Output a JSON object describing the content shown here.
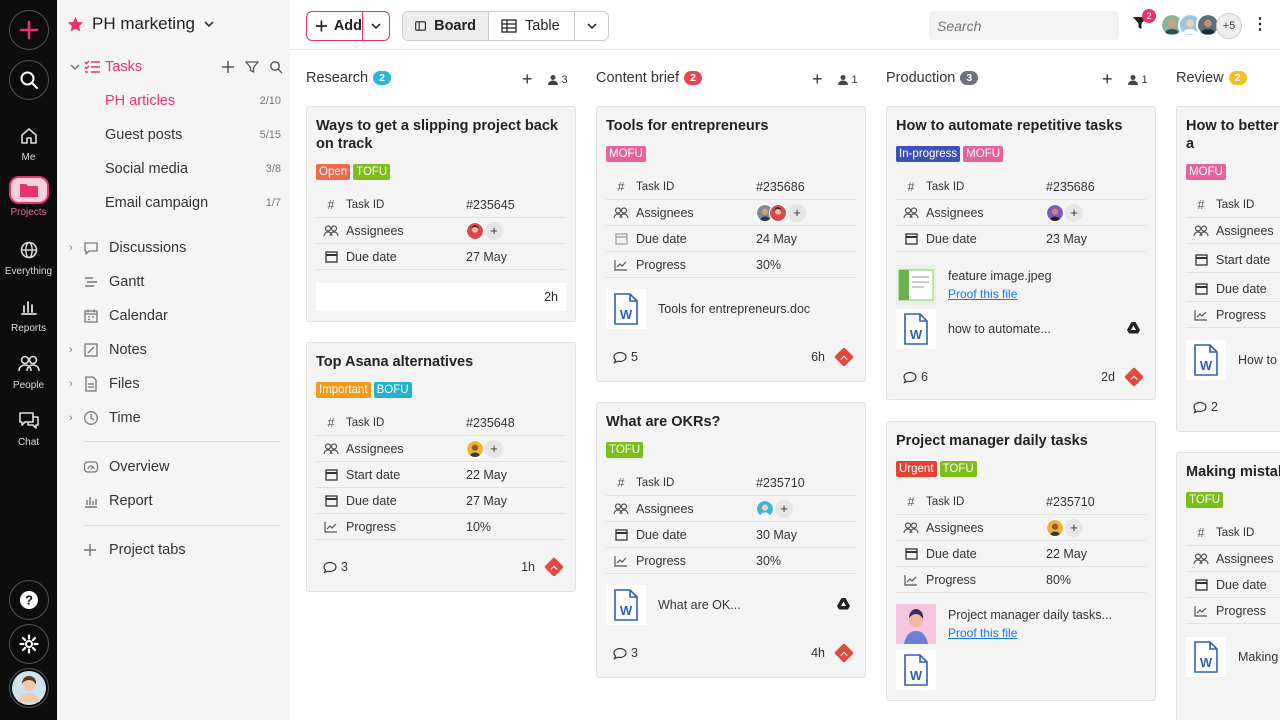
{
  "project": {
    "name": "PH marketing"
  },
  "rail": {
    "items": [
      {
        "label": "Me"
      },
      {
        "label": "Projects"
      },
      {
        "label": "Everything"
      },
      {
        "label": "Reports"
      },
      {
        "label": "People"
      },
      {
        "label": "Chat"
      }
    ]
  },
  "sidebar": {
    "tasks_label": "Tasks",
    "task_lists": [
      {
        "label": "PH articles",
        "count": "2/10"
      },
      {
        "label": "Guest posts",
        "count": "5/15"
      },
      {
        "label": "Social media",
        "count": "3/8"
      },
      {
        "label": "Email campaign",
        "count": "1/7"
      }
    ],
    "nav": [
      {
        "label": "Discussions"
      },
      {
        "label": "Gantt"
      },
      {
        "label": "Calendar"
      },
      {
        "label": "Notes"
      },
      {
        "label": "Files"
      },
      {
        "label": "Time"
      }
    ],
    "extra": [
      {
        "label": "Overview"
      },
      {
        "label": "Report"
      }
    ],
    "project_tabs": "Project tabs"
  },
  "toolbar": {
    "add_label": "Add",
    "board_label": "Board",
    "table_label": "Table",
    "search_placeholder": "Search",
    "filter_count": "2",
    "more_people": "+5"
  },
  "columns": [
    {
      "name": "Research",
      "count": "2",
      "people": "3",
      "color": "#29b6d8"
    },
    {
      "name": "Content brief",
      "count": "2",
      "people": "1",
      "color": "#e8474f"
    },
    {
      "name": "Production",
      "count": "3",
      "people": "1",
      "color": "#6d7278"
    },
    {
      "name": "Review",
      "count": "2",
      "people": "",
      "color": "#f2c01f"
    }
  ],
  "field_labels": {
    "task_id": "Task ID",
    "assignees": "Assignees",
    "due_date": "Due date",
    "start_date": "Start date",
    "progress": "Progress"
  },
  "cards": {
    "c1": {
      "title": "Ways to get a slipping project back on track",
      "tags": [
        "Open",
        "TOFU"
      ],
      "task_id": "#235645",
      "due": "27 May",
      "time": "2h"
    },
    "c2": {
      "title": "Top Asana alternatives",
      "tags": [
        "Important",
        "BOFU"
      ],
      "task_id": "#235648",
      "start": "22 May",
      "due": "27 May",
      "progress": "10%",
      "comments": "3",
      "time": "1h"
    },
    "c3": {
      "title": "Tools for entrepreneurs",
      "tags": [
        "MOFU"
      ],
      "task_id": "#235686",
      "due": "24 May",
      "progress": "30%",
      "file": "Tools for entrepreneurs.doc",
      "comments": "5",
      "time": "6h"
    },
    "c4": {
      "title": "What are OKRs?",
      "tags": [
        "TOFU"
      ],
      "task_id": "#235710",
      "due": "30 May",
      "progress": "30%",
      "file": "What are OK...",
      "comments": "3",
      "time": "4h"
    },
    "c5": {
      "title": "How to automate repetitive tasks",
      "tags": [
        "In-progress",
        "MOFU"
      ],
      "task_id": "#235686",
      "due": "23 May",
      "file1": "feature image.jpeg",
      "file1_link": "Proof this file",
      "file2": "how to automate...",
      "comments": "6",
      "time": "2d"
    },
    "c6": {
      "title": "Project manager daily tasks",
      "tags": [
        "Urgent",
        "TOFU"
      ],
      "task_id": "#235710",
      "due": "22 May",
      "progress": "80%",
      "file1": "Project manager daily tasks...",
      "file1_link": "Proof this file"
    },
    "c7": {
      "title": "How to better h deadlines as a",
      "tags": [
        "MOFU"
      ],
      "file": "How to",
      "comments": "2"
    },
    "c8": {
      "title": "Making mistake",
      "tags": [
        "TOFU"
      ],
      "file": "Making"
    }
  },
  "colors": {
    "accent": "#e8336c",
    "tag_open": "#ef6a4c",
    "tag_tofu": "#7bbd19",
    "tag_mofu": "#e6629a",
    "tag_bofu": "#22b3cc",
    "tag_important": "#f29a1d",
    "tag_inprogress": "#3f51b5",
    "tag_urgent": "#e5432f"
  }
}
